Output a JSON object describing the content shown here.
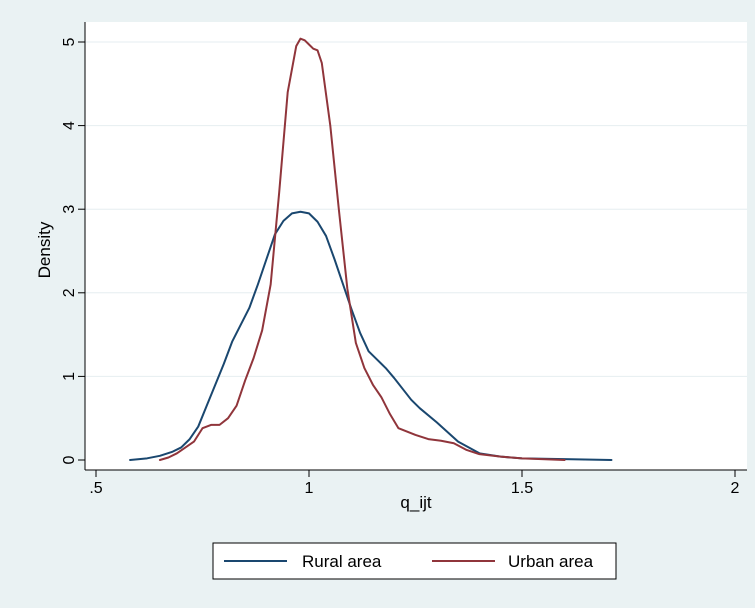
{
  "chart_data": {
    "type": "line",
    "xlabel": "q_ijt",
    "ylabel": "Density",
    "xlim": [
      0.5,
      2.0
    ],
    "ylim": [
      0,
      5
    ],
    "xticks": [
      {
        "value": 0.5,
        "label": ".5"
      },
      {
        "value": 1.0,
        "label": "1"
      },
      {
        "value": 1.5,
        "label": "1.5"
      },
      {
        "value": 2.0,
        "label": "2"
      }
    ],
    "yticks": [
      {
        "value": 0,
        "label": "0"
      },
      {
        "value": 1,
        "label": "1"
      },
      {
        "value": 2,
        "label": "2"
      },
      {
        "value": 3,
        "label": "3"
      },
      {
        "value": 4,
        "label": "4"
      },
      {
        "value": 5,
        "label": "5"
      }
    ],
    "grid": true,
    "legend_position": "bottom",
    "colors": {
      "plot_background": "#ffffff",
      "page_background": "#eaf2f3",
      "grid": "#e6eef0"
    },
    "series": [
      {
        "name": "Rural area",
        "color": "#1a476f",
        "x": [
          0.58,
          0.62,
          0.65,
          0.68,
          0.7,
          0.72,
          0.74,
          0.76,
          0.78,
          0.8,
          0.82,
          0.84,
          0.86,
          0.88,
          0.9,
          0.92,
          0.94,
          0.96,
          0.98,
          1.0,
          1.02,
          1.04,
          1.06,
          1.08,
          1.1,
          1.12,
          1.14,
          1.16,
          1.18,
          1.2,
          1.22,
          1.24,
          1.26,
          1.3,
          1.35,
          1.4,
          1.45,
          1.5,
          1.6,
          1.71
        ],
        "y": [
          0.0,
          0.02,
          0.05,
          0.1,
          0.15,
          0.25,
          0.4,
          0.65,
          0.9,
          1.15,
          1.42,
          1.62,
          1.82,
          2.1,
          2.4,
          2.7,
          2.86,
          2.95,
          2.97,
          2.95,
          2.85,
          2.68,
          2.4,
          2.1,
          1.8,
          1.52,
          1.3,
          1.2,
          1.1,
          0.98,
          0.85,
          0.72,
          0.62,
          0.45,
          0.22,
          0.08,
          0.04,
          0.02,
          0.01,
          0.0
        ]
      },
      {
        "name": "Urban area",
        "color": "#90353b",
        "x": [
          0.65,
          0.67,
          0.69,
          0.71,
          0.73,
          0.75,
          0.77,
          0.79,
          0.81,
          0.83,
          0.85,
          0.87,
          0.89,
          0.91,
          0.93,
          0.95,
          0.97,
          0.98,
          0.99,
          1.0,
          1.01,
          1.02,
          1.03,
          1.05,
          1.07,
          1.09,
          1.11,
          1.13,
          1.15,
          1.17,
          1.19,
          1.21,
          1.23,
          1.25,
          1.28,
          1.31,
          1.34,
          1.37,
          1.4,
          1.45,
          1.5,
          1.6
        ],
        "y": [
          0.0,
          0.03,
          0.08,
          0.15,
          0.22,
          0.38,
          0.42,
          0.42,
          0.5,
          0.65,
          0.95,
          1.22,
          1.55,
          2.1,
          3.2,
          4.4,
          4.95,
          5.04,
          5.02,
          4.97,
          4.92,
          4.9,
          4.75,
          4.0,
          3.0,
          2.05,
          1.4,
          1.1,
          0.9,
          0.75,
          0.55,
          0.38,
          0.34,
          0.3,
          0.25,
          0.23,
          0.2,
          0.12,
          0.07,
          0.04,
          0.02,
          0.0
        ]
      }
    ]
  }
}
